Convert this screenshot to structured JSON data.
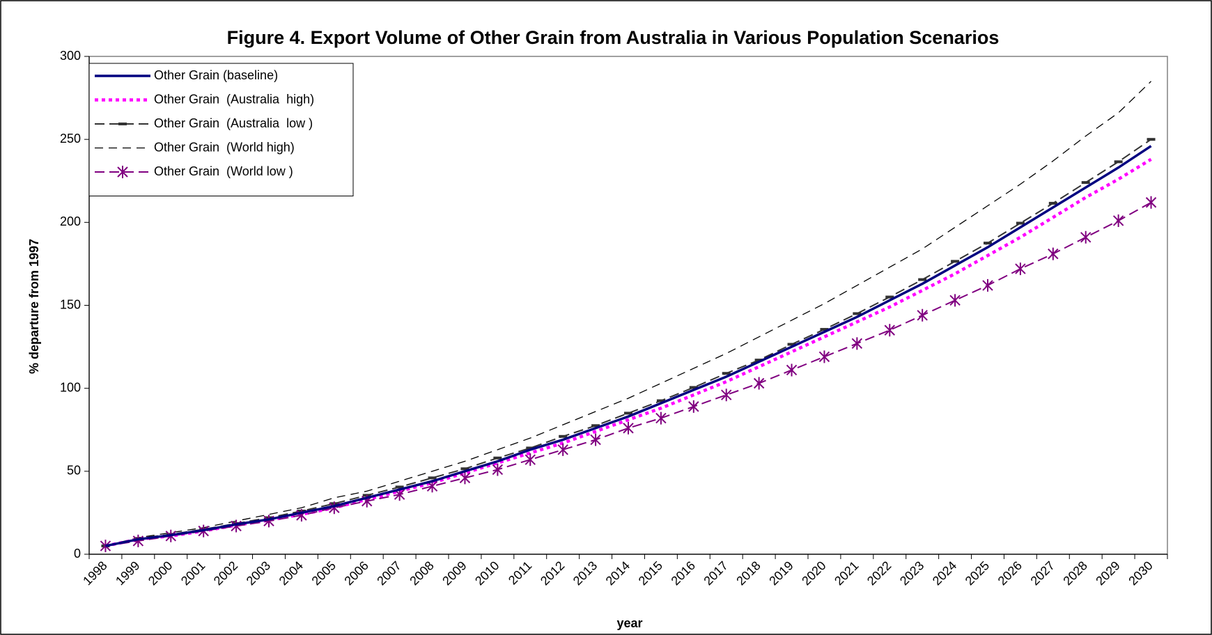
{
  "chart_data": {
    "type": "line",
    "title": "Figure 4. Export Volume of Other Grain from Australia in Various Population Scenarios",
    "y_label": "% departure from 1997",
    "x_label": "year",
    "categories": [
      "1998",
      "1999",
      "2000",
      "2001",
      "2002",
      "2003",
      "2004",
      "2005",
      "2006",
      "2007",
      "2008",
      "2009",
      "2010",
      "2011",
      "2012",
      "2013",
      "2014",
      "2015",
      "2016",
      "2017",
      "2018",
      "2019",
      "2020",
      "2021",
      "2022",
      "2023",
      "2024",
      "2025",
      "2026",
      "2027",
      "2028",
      "2029",
      "2030"
    ],
    "ylim": [
      0,
      300
    ],
    "yticks": [
      0,
      50,
      100,
      150,
      200,
      250,
      300
    ],
    "legend": "top-left",
    "series": [
      {
        "name": "Other Grain (baseline)",
        "color": "#000080",
        "line_style": "solid",
        "values": [
          5,
          9,
          11.5,
          14.5,
          18,
          21,
          25,
          29,
          34,
          39,
          44,
          50,
          56,
          63,
          69,
          76,
          83,
          91,
          99,
          107,
          116,
          125,
          134,
          143,
          153,
          163,
          174,
          185,
          197,
          209,
          221,
          233,
          246
        ]
      },
      {
        "name": "Other Grain  (Australia  high)",
        "color": "#ff00ff",
        "line_style": "dotted",
        "values": [
          5,
          9,
          11,
          14,
          17.5,
          20.5,
          24,
          28,
          33,
          38,
          43,
          49,
          55,
          61,
          67,
          74,
          81,
          88,
          96,
          104,
          113,
          122,
          131,
          140,
          149,
          159,
          169,
          180,
          191,
          203,
          215,
          226,
          238
        ]
      },
      {
        "name": "Other Grain  (Australia  low )",
        "color": "#333333",
        "line_style": "dashed",
        "marker": "dash",
        "values": [
          5,
          9.5,
          12,
          15,
          18.5,
          22,
          26,
          30.5,
          35.5,
          40.5,
          46,
          51.5,
          58,
          64,
          71,
          77.5,
          85,
          92.5,
          100.5,
          109,
          117,
          126.5,
          135.5,
          145,
          155,
          165.5,
          176.5,
          187.5,
          199.5,
          211.5,
          224,
          236.5,
          250
        ]
      },
      {
        "name": "Other Grain  (World high)",
        "color": "#000000",
        "line_style": "thin-dashed",
        "values": [
          5,
          10,
          13,
          16,
          20,
          24,
          28,
          34,
          38,
          44,
          50,
          56,
          63,
          70,
          78,
          86,
          94,
          103,
          112,
          121,
          131,
          141,
          151,
          162,
          173,
          184,
          197,
          210,
          223,
          237,
          252,
          266,
          285
        ]
      },
      {
        "name": "Other Grain  (World low )",
        "color": "#800080",
        "line_style": "dashed",
        "marker": "star",
        "values": [
          5,
          8,
          11,
          14,
          17,
          20,
          23.5,
          28,
          32,
          36,
          41,
          46,
          51,
          57,
          63,
          69,
          76,
          82,
          89,
          96,
          103,
          111,
          119,
          127,
          135,
          144,
          153,
          162,
          172,
          181,
          191,
          201,
          212
        ]
      }
    ]
  }
}
